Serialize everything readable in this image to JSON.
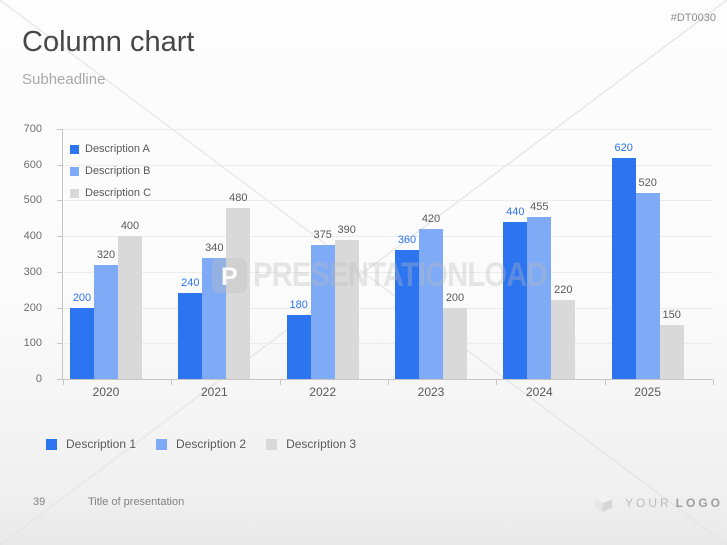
{
  "slide": {
    "code": "#DT0030",
    "title": "Column chart",
    "subheadline": "Subheadline",
    "watermark": "PRESENTATIONLOAD",
    "watermark_badge_letter": "P",
    "footer": {
      "page_number": "39",
      "presentation_title": "Title of presentation"
    },
    "logo": {
      "word1": "YOUR",
      "word2": "LOGO"
    }
  },
  "chart_data": {
    "type": "bar",
    "title": "",
    "categories": [
      "2020",
      "2021",
      "2022",
      "2023",
      "2024",
      "2025"
    ],
    "series": [
      {
        "name": "Description A",
        "color": "#2D74F0",
        "label_color": "#2D74F0",
        "values": [
          200,
          240,
          180,
          360,
          440,
          620
        ]
      },
      {
        "name": "Description B",
        "color": "#7FAAF6",
        "label_color": "#595959",
        "values": [
          320,
          340,
          375,
          420,
          455,
          520
        ]
      },
      {
        "name": "Description C",
        "color": "#D9D9D9",
        "label_color": "#595959",
        "values": [
          400,
          480,
          390,
          200,
          220,
          150
        ]
      }
    ],
    "ylim": [
      0,
      700
    ],
    "ytick_step": 100,
    "grid": "horizontal",
    "legend_position": "top-left-inside",
    "data_labels": true
  },
  "bottom_legend": {
    "items": [
      {
        "label": "Description 1",
        "color": "#2D74F0"
      },
      {
        "label": "Description 2",
        "color": "#7FAAF6"
      },
      {
        "label": "Description 3",
        "color": "#D9D9D9"
      }
    ]
  },
  "colors": {
    "grid": "#ececec",
    "axis": "#c6c6c6",
    "title_text": "#474747",
    "muted_text": "#595959"
  }
}
